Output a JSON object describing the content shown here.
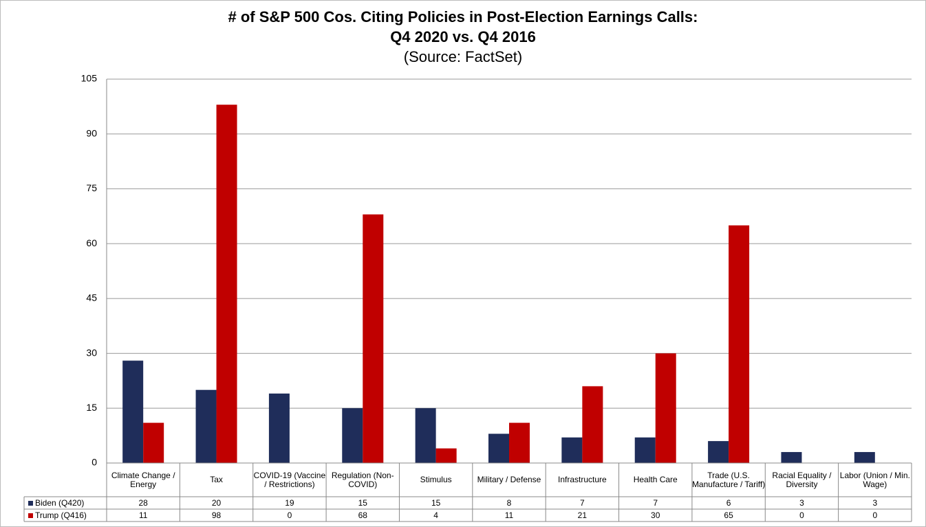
{
  "chart_data": {
    "type": "bar",
    "title": [
      "# of S&P 500 Cos. Citing Policies in Post-Election Earnings Calls:",
      "Q4 2020 vs. Q4 2016"
    ],
    "subtitle": "(Source: FactSet)",
    "categories": [
      "Climate Change / Energy",
      "Tax",
      "COVID-19 (Vaccine / Restrictions)",
      "Regulation (Non-COVID)",
      "Stimulus",
      "Military / Defense",
      "Infrastructure",
      "Health Care",
      "Trade (U.S. Manufacture / Tariff)",
      "Racial Equality / Diversity",
      "Labor (Union / Min. Wage)"
    ],
    "series": [
      {
        "name": "Biden (Q420)",
        "color": "#1f2d5a",
        "values": [
          28,
          20,
          19,
          15,
          15,
          8,
          7,
          7,
          6,
          3,
          3
        ]
      },
      {
        "name": "Trump (Q416)",
        "color": "#c00000",
        "values": [
          11,
          98,
          0,
          68,
          4,
          11,
          21,
          30,
          65,
          0,
          0
        ]
      }
    ],
    "ylim": [
      0,
      105
    ],
    "yticks": [
      0,
      15,
      30,
      45,
      60,
      75,
      90,
      105
    ],
    "grid": true
  }
}
